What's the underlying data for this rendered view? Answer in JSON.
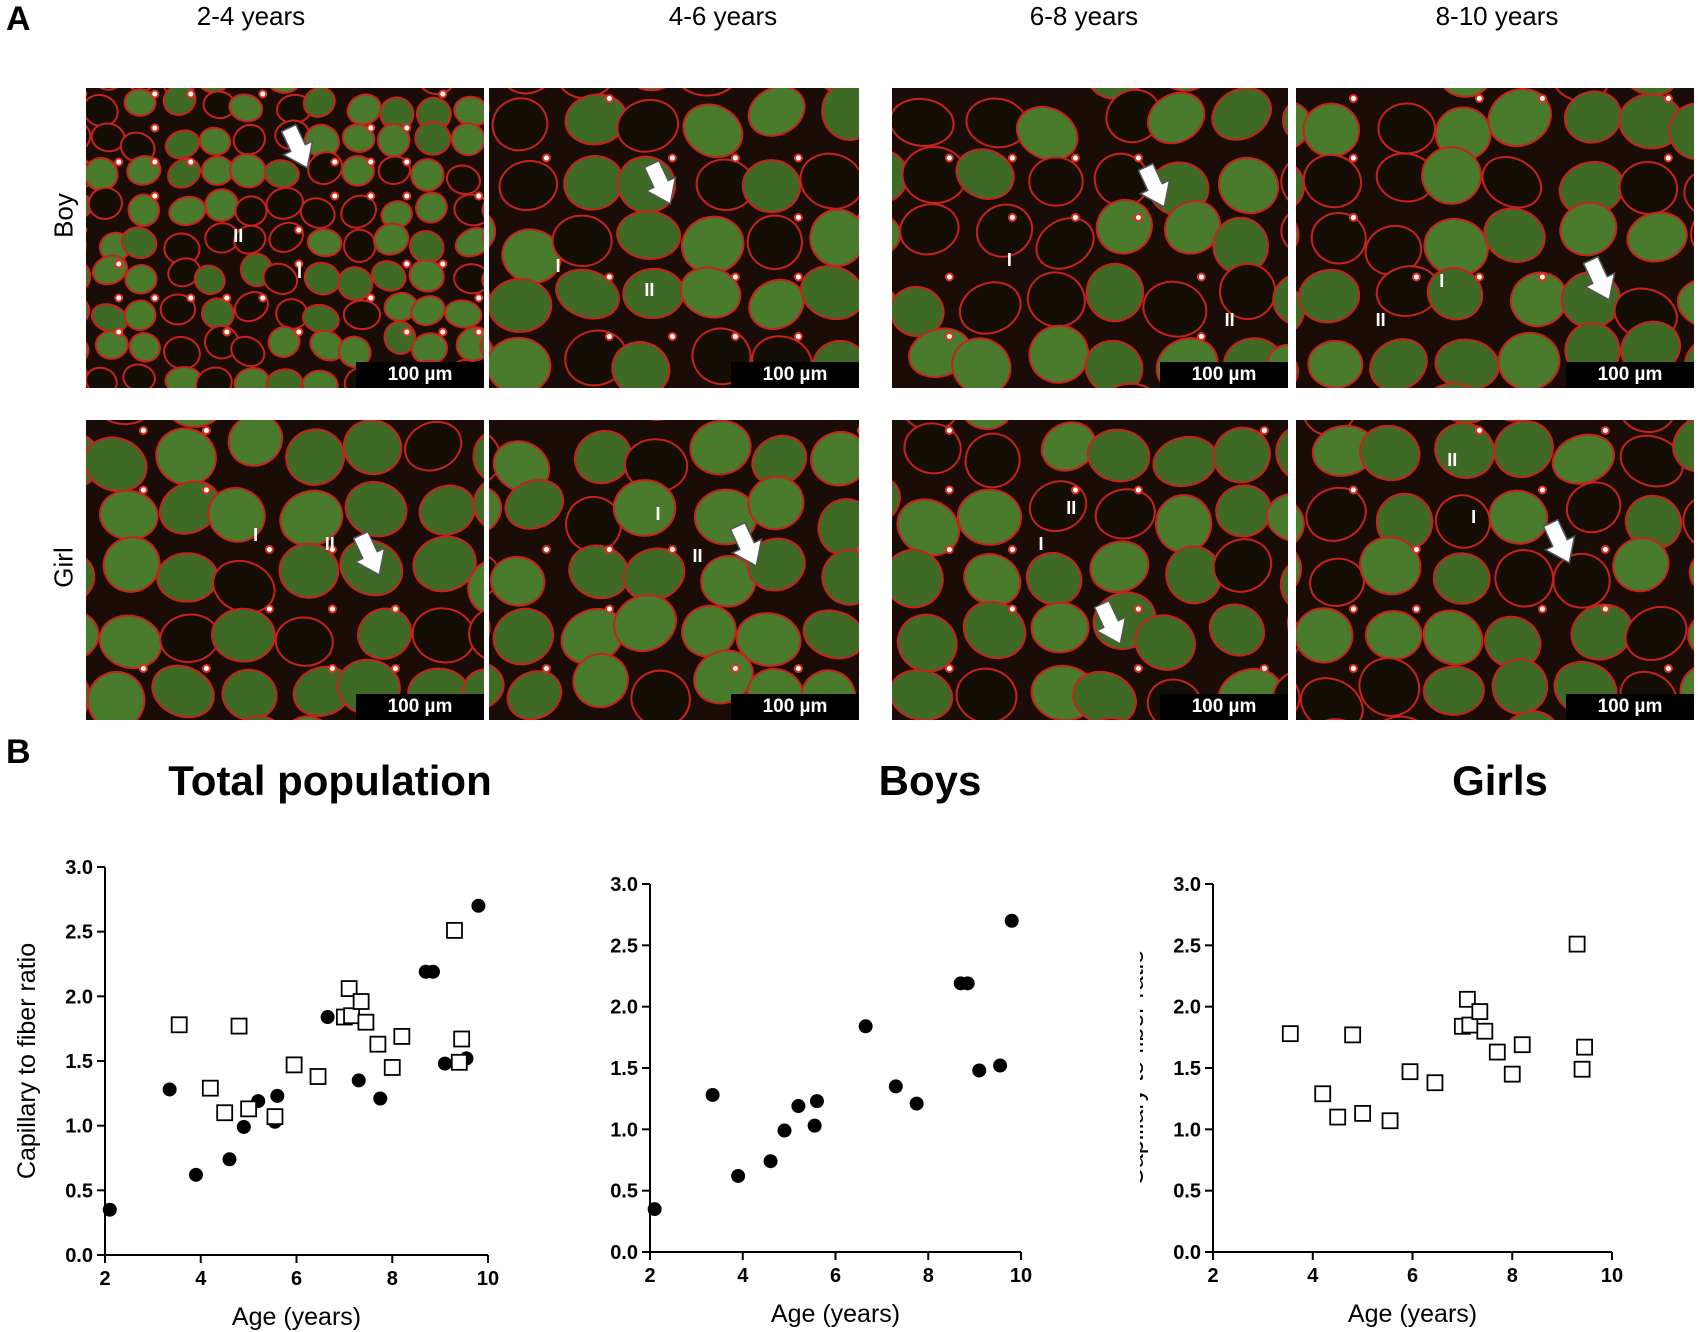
{
  "panel_a": {
    "letter": "A",
    "columns": [
      "2-4 years",
      "4-6 years",
      "6-8 years",
      "8-10 years"
    ],
    "rows": [
      "Boy",
      "Girl"
    ],
    "scale_bar": "100 µm",
    "fiber_type_labels": {
      "type1": "I",
      "type2": "II"
    }
  },
  "panel_b": {
    "letter": "B"
  },
  "chart_data": [
    {
      "type": "scatter",
      "title": "Total population",
      "xlabel": "Age (years)",
      "ylabel": "Capillary to fiber ratio",
      "xlim": [
        2,
        10
      ],
      "ylim": [
        0,
        3
      ],
      "xticks": [
        "2",
        "4",
        "6",
        "8",
        "10"
      ],
      "yticks": [
        "0.0",
        "0.5",
        "1.0",
        "1.5",
        "2.0",
        "2.5",
        "3.0"
      ],
      "series": [
        {
          "marker": "filled-circle",
          "x": [
            2.1,
            3.35,
            3.9,
            4.6,
            4.9,
            5.2,
            5.55,
            5.6,
            6.65,
            7.3,
            7.75,
            8.7,
            8.85,
            9.1,
            9.55,
            9.8
          ],
          "y": [
            0.35,
            1.28,
            0.62,
            0.74,
            0.99,
            1.19,
            1.03,
            1.23,
            1.84,
            1.35,
            1.21,
            2.19,
            2.19,
            1.48,
            1.52,
            2.7
          ]
        },
        {
          "marker": "open-square",
          "x": [
            3.55,
            4.2,
            4.5,
            4.8,
            5.0,
            5.55,
            5.95,
            6.45,
            7.0,
            7.1,
            7.15,
            7.35,
            7.45,
            7.7,
            8.0,
            8.2,
            9.3,
            9.4,
            9.45
          ],
          "y": [
            1.78,
            1.29,
            1.1,
            1.77,
            1.13,
            1.07,
            1.47,
            1.38,
            1.84,
            2.06,
            1.85,
            1.96,
            1.8,
            1.63,
            1.45,
            1.69,
            2.51,
            1.49,
            1.67
          ]
        }
      ]
    },
    {
      "type": "scatter",
      "title": "Boys",
      "xlabel": "Age (years)",
      "ylabel": "Capillary to fiber ratio",
      "xlim": [
        2,
        10
      ],
      "ylim": [
        0,
        3
      ],
      "xticks": [
        "2",
        "4",
        "6",
        "8",
        "10"
      ],
      "yticks": [
        "0.0",
        "0.5",
        "1.0",
        "1.5",
        "2.0",
        "2.5",
        "3.0"
      ],
      "series": [
        {
          "marker": "filled-circle",
          "x": [
            2.1,
            3.35,
            3.9,
            4.6,
            4.9,
            5.2,
            5.55,
            5.6,
            6.65,
            7.3,
            7.75,
            8.7,
            8.85,
            9.1,
            9.55,
            9.8
          ],
          "y": [
            0.35,
            1.28,
            0.62,
            0.74,
            0.99,
            1.19,
            1.03,
            1.23,
            1.84,
            1.35,
            1.21,
            2.19,
            2.19,
            1.48,
            1.52,
            2.7
          ]
        }
      ]
    },
    {
      "type": "scatter",
      "title": "Girls",
      "xlabel": "Age (years)",
      "ylabel": "Capillary to fiber ratio",
      "xlim": [
        2,
        10
      ],
      "ylim": [
        0,
        3
      ],
      "xticks": [
        "2",
        "4",
        "6",
        "8",
        "10"
      ],
      "yticks": [
        "0.0",
        "0.5",
        "1.0",
        "1.5",
        "2.0",
        "2.5",
        "3.0"
      ],
      "series": [
        {
          "marker": "open-square",
          "x": [
            3.55,
            4.2,
            4.5,
            4.8,
            5.0,
            5.55,
            5.95,
            6.45,
            7.0,
            7.1,
            7.15,
            7.35,
            7.45,
            7.7,
            8.0,
            8.2,
            9.3,
            9.4,
            9.45
          ],
          "y": [
            1.78,
            1.29,
            1.1,
            1.77,
            1.13,
            1.07,
            1.47,
            1.38,
            1.84,
            2.06,
            1.85,
            1.96,
            1.8,
            1.63,
            1.45,
            1.69,
            2.51,
            1.49,
            1.67
          ]
        }
      ]
    }
  ]
}
